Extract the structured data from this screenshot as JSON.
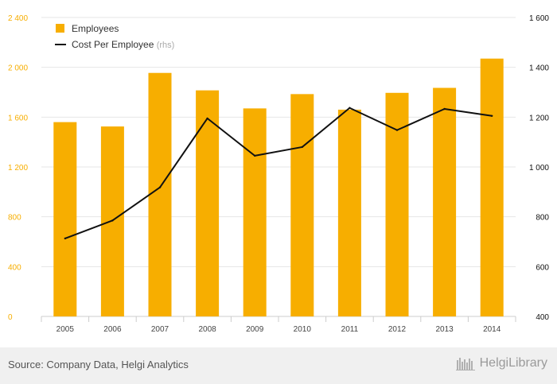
{
  "chart_data": {
    "type": "bar",
    "categories": [
      "2005",
      "2006",
      "2007",
      "2008",
      "2009",
      "2010",
      "2011",
      "2012",
      "2013",
      "2014"
    ],
    "series": [
      {
        "name": "Employees",
        "type": "bar",
        "axis": "left",
        "color": "#F7AE00",
        "values": [
          1560,
          1525,
          1955,
          1815,
          1670,
          1785,
          1660,
          1795,
          1835,
          2070
        ]
      },
      {
        "name": "Cost Per Employee",
        "type": "line",
        "axis": "right",
        "color": "#111111",
        "values": [
          713,
          785,
          918,
          1195,
          1045,
          1080,
          1237,
          1148,
          1233,
          1205
        ]
      }
    ],
    "left_axis": {
      "ylim": [
        0,
        2400
      ],
      "ticks": [
        0,
        400,
        800,
        1200,
        1600,
        2000,
        2400
      ],
      "tick_labels": [
        "0",
        "400",
        "800",
        "1 200",
        "1 600",
        "2 000",
        "2 400"
      ],
      "color": "#F7AE00"
    },
    "right_axis": {
      "ylim": [
        400,
        1600
      ],
      "ticks": [
        400,
        600,
        800,
        1000,
        1200,
        1400,
        1600
      ],
      "tick_labels": [
        "400",
        "600",
        "800",
        "1 000",
        "1 200",
        "1 400",
        "1 600"
      ],
      "color": "#111111"
    },
    "legend": {
      "placement": "top-left",
      "entries": [
        {
          "label": "Employees",
          "suffix": ""
        },
        {
          "label": "Cost Per Employee",
          "suffix": "(rhs)"
        }
      ]
    },
    "grid": true
  },
  "footer": {
    "source": "Source: Company Data, Helgi Analytics",
    "logo_text": "HelgiLibrary"
  }
}
